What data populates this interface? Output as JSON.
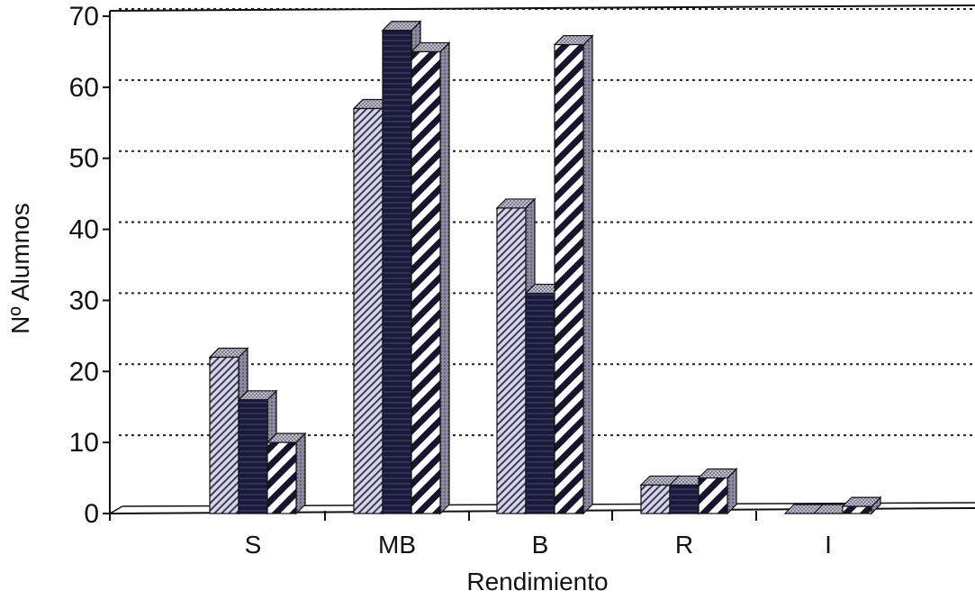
{
  "chart_data": {
    "type": "bar",
    "title": "",
    "xlabel": "Rendimiento",
    "ylabel": "Nº Alumnos",
    "categories": [
      "S",
      "MB",
      "B",
      "R",
      "I"
    ],
    "series": [
      {
        "values": [
          22,
          57,
          43,
          4,
          0
        ]
      },
      {
        "values": [
          16,
          68,
          31,
          4,
          0
        ]
      },
      {
        "values": [
          10,
          65,
          66,
          5,
          1
        ]
      }
    ],
    "ylim": [
      0,
      70
    ],
    "yticks": [
      "0",
      "10",
      "20",
      "30",
      "40",
      "50",
      "60",
      "70"
    ],
    "grid": true,
    "legend": "none",
    "style": "3d-hatched-bars"
  }
}
